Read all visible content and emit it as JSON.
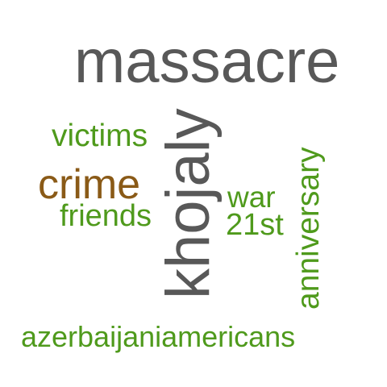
{
  "words": {
    "massacre": {
      "text": "massacre",
      "color": "#585858"
    },
    "khojaly": {
      "text": "khojaly",
      "color": "#585858"
    },
    "crime": {
      "text": "crime",
      "color": "#8a5a17"
    },
    "victims": {
      "text": "victims",
      "color": "#4f9a1c"
    },
    "friends": {
      "text": "friends",
      "color": "#4f9a1c"
    },
    "war": {
      "text": "war",
      "color": "#4f9a1c"
    },
    "twentyfirst": {
      "text": "21st",
      "color": "#4f9a1c"
    },
    "anniversary": {
      "text": "anniversary",
      "color": "#4f9a1c"
    },
    "azerbaijaniamericans": {
      "text": "azerbaijaniamericans",
      "color": "#4f9a1c"
    }
  }
}
